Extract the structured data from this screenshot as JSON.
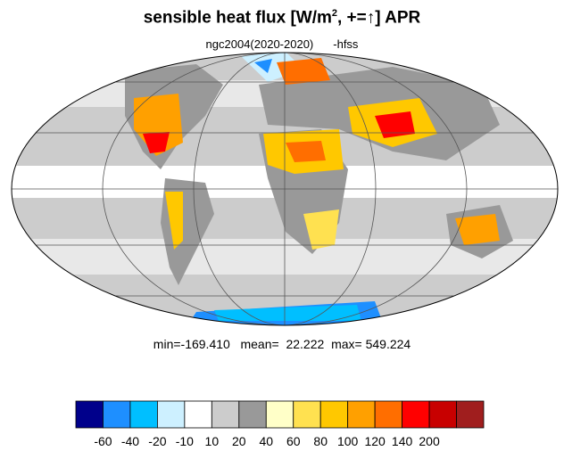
{
  "title_main": "sensible heat flux [W/m",
  "title_sup": "2",
  "title_tail": ", +=↑]  APR",
  "subtitle_run": "ngc2004(2020-2020)",
  "subtitle_var": "-hfss",
  "stats": {
    "min_label": "min=",
    "min": "-169.410",
    "mean_label": "mean=",
    "mean": "22.222",
    "max_label": "max=",
    "max": "549.224"
  },
  "colorbar": {
    "colors": [
      "#00008b",
      "#1e8fff",
      "#00bfff",
      "#cdf0ff",
      "#ffffff",
      "#cccccc",
      "#999999",
      "#ffffc8",
      "#ffe150",
      "#ffc800",
      "#ffa000",
      "#ff6e00",
      "#ff0000",
      "#c80000",
      "#a01e1e"
    ],
    "tick_labels": [
      "-60",
      "-40",
      "-20",
      "-10",
      "10",
      "20",
      "40",
      "60",
      "80",
      "100",
      "120",
      "140",
      "200"
    ]
  },
  "map": {
    "projection": "mollweide",
    "ocean_color": "#cccccc",
    "band_color": "#ffffff",
    "land_color": "#999999",
    "hot_colors": [
      "#ffe150",
      "#ffc800",
      "#ffa000",
      "#ff6e00",
      "#ff0000"
    ],
    "cold_color": "#1e8fff"
  }
}
